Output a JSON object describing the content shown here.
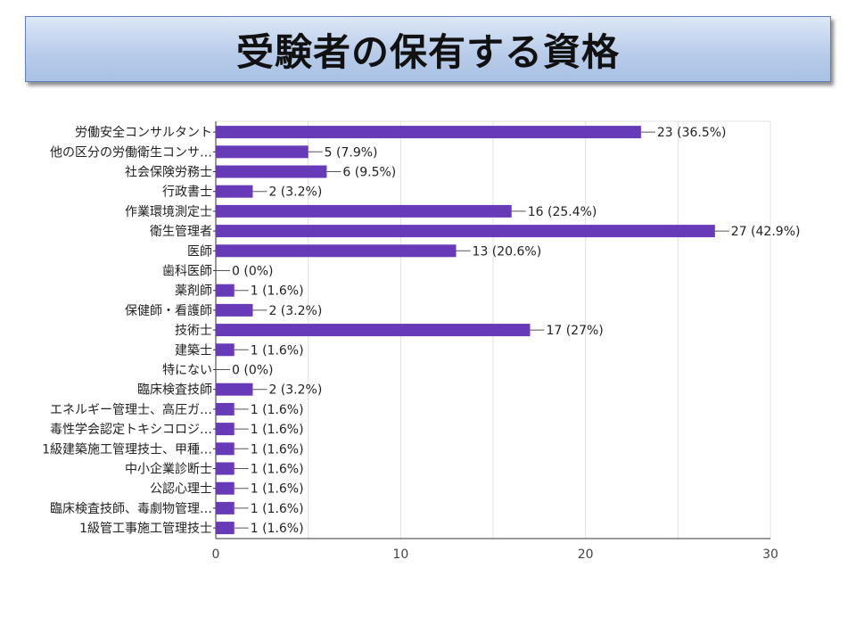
{
  "title": "受験者の保有する資格",
  "chart_data": {
    "type": "bar",
    "orientation": "horizontal",
    "categories": [
      "労働安全コンサルタント",
      "他の区分の労働衛生コンサ…",
      "社会保険労務士",
      "行政書士",
      "作業環境測定士",
      "衛生管理者",
      "医師",
      "歯科医師",
      "薬剤師",
      "保健師・看護師",
      "技術士",
      "建築士",
      "特にない",
      "臨床検査技師",
      "エネルギー管理士、高圧ガ…",
      "毒性学会認定トキシコロジ…",
      "1級建築施工管理技士、甲種…",
      "中小企業診断士",
      "公認心理士",
      "臨床検査技師、毒劇物管理…",
      "1級管工事施工管理技士"
    ],
    "values": [
      23,
      5,
      6,
      2,
      16,
      27,
      13,
      0,
      1,
      2,
      17,
      1,
      0,
      2,
      1,
      1,
      1,
      1,
      1,
      1,
      1
    ],
    "value_labels": [
      "23 (36.5%)",
      "5 (7.9%)",
      "6 (9.5%)",
      "2 (3.2%)",
      "16 (25.4%)",
      "27 (42.9%)",
      "13 (20.6%)",
      "0 (0%)",
      "1 (1.6%)",
      "2 (3.2%)",
      "17 (27%)",
      "1 (1.6%)",
      "0 (0%)",
      "2 (3.2%)",
      "1 (1.6%)",
      "1 (1.6%)",
      "1 (1.6%)",
      "1 (1.6%)",
      "1 (1.6%)",
      "1 (1.6%)",
      "1 (1.6%)"
    ],
    "xlim": [
      0,
      30
    ],
    "xticks": [
      0,
      10,
      20,
      30
    ],
    "grid": true,
    "colors": {
      "bar": "#673ab7",
      "grid": "#e0e0e0",
      "axis": "#333333"
    }
  }
}
